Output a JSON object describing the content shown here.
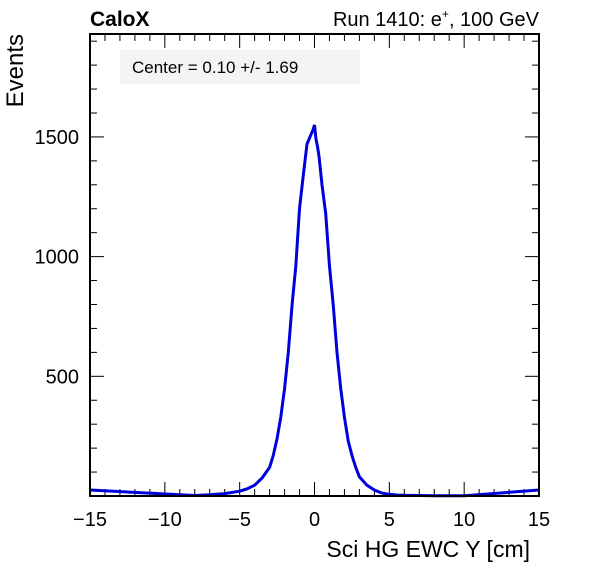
{
  "chart_data": {
    "type": "line",
    "experiment_label": "CaloX",
    "run_label_prefix": "Run 1410: e",
    "run_label_sup": "+",
    "run_label_suffix": ", 100 GeV",
    "stats_label": "Center = 0.10 +/- 1.69",
    "xlabel": "Sci HG EWC Y [cm]",
    "ylabel": "Events",
    "xlim": [
      -15,
      15
    ],
    "ylim": [
      0,
      1930
    ],
    "x_ticks": [
      -15,
      -10,
      -5,
      0,
      5,
      10,
      15
    ],
    "x_tick_labels": [
      "−15",
      "−10",
      "−5",
      "0",
      "5",
      "10",
      "15"
    ],
    "y_ticks": [
      500,
      1000,
      1500
    ],
    "y_tick_labels": [
      "500",
      "1000",
      "1500"
    ],
    "grid": false,
    "legend": "none",
    "series_color": "#0000dd",
    "series": [
      {
        "x": [
          -15.0,
          -8.0,
          -7.0,
          -6.0,
          -5.0,
          -4.5,
          -4.0,
          -3.5,
          -3.0,
          -2.75,
          -2.5,
          -2.25,
          -2.0,
          -1.75,
          -1.5,
          -1.25,
          -1.0,
          -0.75,
          -0.5,
          -0.3,
          -0.1,
          0.0,
          0.1,
          0.2,
          0.3,
          0.5,
          0.75,
          1.0,
          1.25,
          1.5,
          1.75,
          2.0,
          2.25,
          2.5,
          2.75,
          3.0,
          3.5,
          4.0,
          4.5,
          5.0,
          5.5,
          6.0,
          7.0,
          8.0,
          10.0,
          15.0
        ],
        "y": [
          25,
          2,
          5,
          10,
          20,
          30,
          45,
          75,
          120,
          170,
          240,
          330,
          450,
          600,
          800,
          960,
          1200,
          1340,
          1470,
          1500,
          1530,
          1550,
          1490,
          1460,
          1420,
          1300,
          1180,
          960,
          800,
          600,
          450,
          330,
          230,
          170,
          120,
          80,
          45,
          25,
          12,
          7,
          4,
          3,
          2,
          1,
          1,
          25
        ]
      }
    ]
  }
}
